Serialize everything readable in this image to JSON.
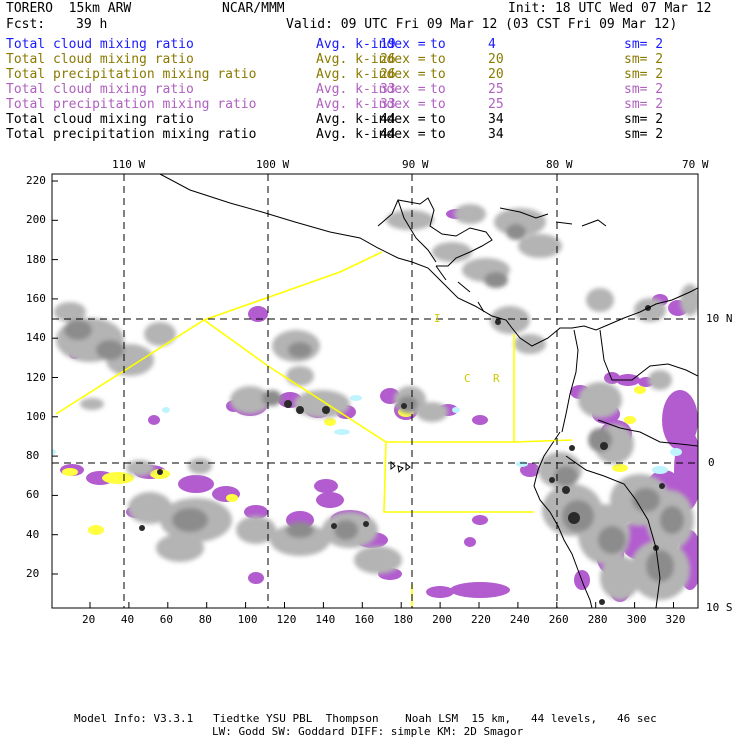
{
  "header": {
    "model": "TORERO  15km ARW",
    "center": "NCAR/MMM",
    "init": "Init: 18 UTC Wed 07 Mar 12",
    "fcst_label": "Fcst:",
    "fcst_value": "39 h",
    "valid": "Valid: 09 UTC Fri 09 Mar 12 (03 CST Fri 09 Mar 12)"
  },
  "legend": [
    {
      "field": "Total cloud mixing ratio",
      "kindex": "Avg. k-index =",
      "hi": "19",
      "to": "to",
      "lo": "4",
      "sm": "sm= 2",
      "color": "#1a1aff"
    },
    {
      "field": "Total cloud mixing ratio",
      "kindex": "Avg. k-index =",
      "hi": "26",
      "to": "to",
      "lo": "20",
      "sm": "sm= 2",
      "color": "#8a7a00"
    },
    {
      "field": "Total precipitation mixing ratio",
      "kindex": "Avg. k-index =",
      "hi": "26",
      "to": "to",
      "lo": "20",
      "sm": "sm= 2",
      "color": "#8a7a00"
    },
    {
      "field": "Total cloud mixing ratio",
      "kindex": "Avg. k-index =",
      "hi": "33",
      "to": "to",
      "lo": "25",
      "sm": "sm= 2",
      "color": "#b060c0"
    },
    {
      "field": "Total precipitation mixing ratio",
      "kindex": "Avg. k-index =",
      "hi": "33",
      "to": "to",
      "lo": "25",
      "sm": "sm= 2",
      "color": "#b060c0"
    },
    {
      "field": "Total cloud mixing ratio",
      "kindex": "Avg. k-index =",
      "hi": "44",
      "to": "to",
      "lo": "34",
      "sm": "sm= 2",
      "color": "#000000"
    },
    {
      "field": "Total precipitation mixing ratio",
      "kindex": "Avg. k-index =",
      "hi": "44",
      "to": "to",
      "lo": "34",
      "sm": "sm= 2",
      "color": "#000000"
    }
  ],
  "map": {
    "lon_labels": [
      "110 W",
      "100 W",
      "90 W",
      "80 W",
      "70 W"
    ],
    "lat_labels": [
      "10 N",
      "0",
      "10 S"
    ],
    "y_ticks": [
      "220",
      "200",
      "180",
      "160",
      "140",
      "120",
      "100",
      "80",
      "60",
      "40",
      "20"
    ],
    "x_ticks": [
      "20",
      "40",
      "60",
      "80",
      "100",
      "120",
      "140",
      "160",
      "180",
      "200",
      "220",
      "240",
      "260",
      "280",
      "300",
      "320"
    ],
    "annotations": [
      "I",
      "C",
      "R"
    ],
    "colors": {
      "dark": "#2a2a2a",
      "mid": "#8c8c8c",
      "light": "#b4b4b4",
      "purple": "#b25ccf",
      "yellow": "#ffff40",
      "cyan": "#bff4ff",
      "box": "#ffff00"
    }
  },
  "footer": {
    "line1": "Model Info: V3.3.1   Tiedtke YSU PBL  Thompson    Noah LSM  15 km,   44 levels,   46 sec",
    "line2": "LW: Godd SW: Goddard DIFF: simple KM: 2D Smagor"
  }
}
